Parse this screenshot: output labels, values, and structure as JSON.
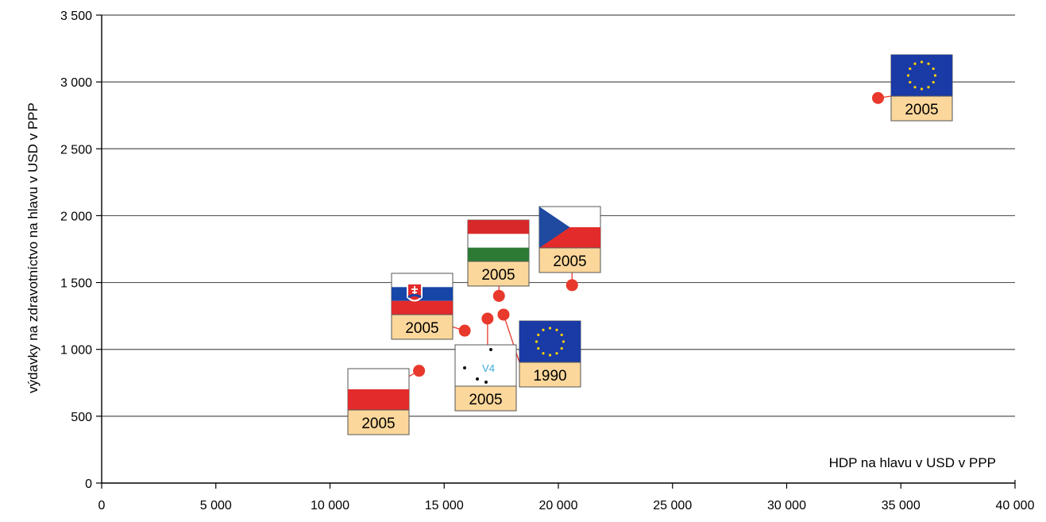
{
  "chart_data": {
    "type": "scatter",
    "title": "",
    "xlabel": "HDP na hlavu v USD v PPP",
    "ylabel": "výdavky na zdravotníctvo na hlavu v USD v PPP",
    "xlim": [
      0,
      40000
    ],
    "ylim": [
      0,
      3500
    ],
    "x_ticks": [
      "0",
      "5 000",
      "10 000",
      "15 000",
      "20 000",
      "25 000",
      "30 000",
      "35 000",
      "40 000"
    ],
    "y_ticks": [
      "0",
      "500",
      "1 000",
      "1 500",
      "2 000",
      "2 500",
      "3 000",
      "3 500"
    ],
    "grid": "horizontal",
    "marker_color": "#e8392c",
    "points": [
      {
        "x": 13900,
        "y": 840,
        "flag": "poland-flag",
        "label": "2005"
      },
      {
        "x": 15900,
        "y": 1140,
        "flag": "slovakia-flag",
        "label": "2005"
      },
      {
        "x": 16900,
        "y": 1230,
        "flag": "v4-logo",
        "flag_text": "V4",
        "label": "2005"
      },
      {
        "x": 17400,
        "y": 1400,
        "flag": "hungary-flag",
        "label": "2005"
      },
      {
        "x": 17600,
        "y": 1260,
        "flag": "eu-flag",
        "label": "1990"
      },
      {
        "x": 20600,
        "y": 1480,
        "flag": "czech-flag",
        "label": "2005"
      },
      {
        "x": 34000,
        "y": 2880,
        "flag": "eu-flag",
        "label": "2005"
      }
    ]
  }
}
